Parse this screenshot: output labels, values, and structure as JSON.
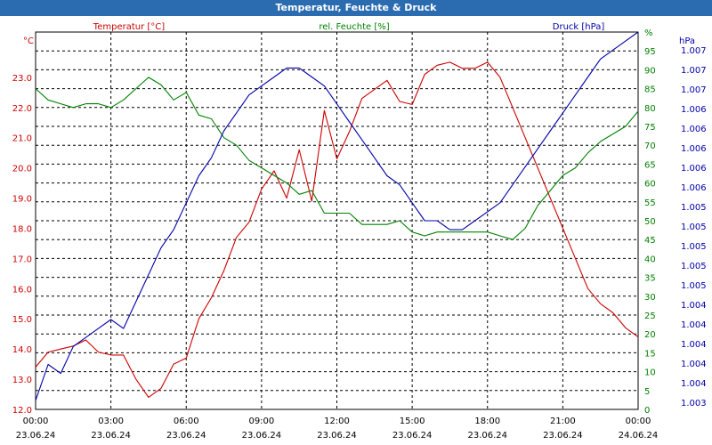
{
  "window": {
    "title": "Temperatur, Feuchte & Druck"
  },
  "chart_data": {
    "type": "line",
    "title": "Temperatur, Feuchte & Druck",
    "legend": {
      "placement": "top",
      "items": [
        "Temperatur [°C]",
        "rel. Feuchte [%]",
        "Druck [hPa]"
      ]
    },
    "grid": true,
    "x_ticks": [
      {
        "time": "00:00",
        "date": "23.06.24"
      },
      {
        "time": "03:00",
        "date": "23.06.24"
      },
      {
        "time": "06:00",
        "date": "23.06.24"
      },
      {
        "time": "09:00",
        "date": "23.06.24"
      },
      {
        "time": "12:00",
        "date": "23.06.24"
      },
      {
        "time": "15:00",
        "date": "23.06.24"
      },
      {
        "time": "18:00",
        "date": "23.06.24"
      },
      {
        "time": "21:00",
        "date": "23.06.24"
      },
      {
        "time": "00:00",
        "date": "24.06.24"
      }
    ],
    "x_range_hours": [
      0,
      24
    ],
    "axes": {
      "temperature": {
        "unit": "°C",
        "range": [
          12.0,
          24.5
        ],
        "ticks": [
          "12.0",
          "13.0",
          "14.0",
          "15.0",
          "16.0",
          "17.0",
          "18.0",
          "19.0",
          "20.0",
          "21.0",
          "22.0",
          "23.0"
        ],
        "color": "#cc0000"
      },
      "humidity": {
        "unit": "%",
        "range": [
          0,
          100
        ],
        "ticks": [
          "0",
          "5",
          "10",
          "15",
          "20",
          "25",
          "30",
          "35",
          "40",
          "45",
          "50",
          "55",
          "60",
          "65",
          "70",
          "75",
          "80",
          "85",
          "90",
          "95",
          "%"
        ],
        "color": "#008000"
      },
      "pressure": {
        "unit": "hPa",
        "range": [
          1003.0,
          1007.2
        ],
        "ticks": [
          "1.003",
          "1.004",
          "1.004",
          "1.004",
          "1.004",
          "1.004",
          "1.005",
          "1.005",
          "1.005",
          "1.005",
          "1.005",
          "1.006",
          "1.006",
          "1.006",
          "1.006",
          "1.006",
          "1.007",
          "1.007",
          "1.007"
        ],
        "color": "#0000aa"
      }
    },
    "series": [
      {
        "name": "Temperatur [°C]",
        "axis": "temperature",
        "color": "#cc0000",
        "x": [
          0,
          0.5,
          1,
          1.5,
          2,
          2.5,
          3,
          3.5,
          4,
          4.5,
          5,
          5.5,
          6,
          6.5,
          7,
          7.5,
          8,
          8.5,
          9,
          9.5,
          10,
          10.5,
          11,
          11.5,
          12,
          12.5,
          13,
          13.5,
          14,
          14.5,
          15,
          15.5,
          16,
          16.5,
          17,
          17.5,
          18,
          18.5,
          19,
          19.5,
          20,
          20.5,
          21,
          21.5,
          22,
          22.5,
          23,
          23.5,
          24
        ],
        "values": [
          13.4,
          13.9,
          14.0,
          14.1,
          14.3,
          13.9,
          13.8,
          13.8,
          13.0,
          12.4,
          12.7,
          13.5,
          13.7,
          15.0,
          15.7,
          16.6,
          17.7,
          18.2,
          19.3,
          19.9,
          19.0,
          20.6,
          18.9,
          21.9,
          20.3,
          21.2,
          22.3,
          22.6,
          22.9,
          22.2,
          22.1,
          23.1,
          23.4,
          23.5,
          23.3,
          23.3,
          23.5,
          23.0,
          22.0,
          21.0,
          20.0,
          19.0,
          18.0,
          17.0,
          16.0,
          15.5,
          15.2,
          14.7,
          14.4
        ]
      },
      {
        "name": "rel. Feuchte [%]",
        "axis": "humidity",
        "color": "#008000",
        "x": [
          0,
          0.5,
          1,
          1.5,
          2,
          2.5,
          3,
          3.5,
          4,
          4.5,
          5,
          5.5,
          6,
          6.5,
          7,
          7.5,
          8,
          8.5,
          9,
          9.5,
          10,
          10.5,
          11,
          11.5,
          12,
          12.5,
          13,
          13.5,
          14,
          14.5,
          15,
          15.5,
          16,
          16.5,
          17,
          17.5,
          18,
          18.5,
          19,
          19.5,
          20,
          20.5,
          21,
          21.5,
          22,
          22.5,
          23,
          23.5,
          24
        ],
        "values": [
          85,
          82,
          81,
          80,
          81,
          81,
          80,
          82,
          85,
          88,
          86,
          82,
          84,
          78,
          77,
          72,
          70,
          66,
          64,
          62,
          60,
          57,
          58,
          52,
          52,
          52,
          49,
          49,
          49,
          50,
          47,
          46,
          47,
          47,
          47,
          47,
          47,
          46,
          45,
          48,
          54,
          58,
          62,
          64,
          68,
          71,
          73,
          75,
          79
        ]
      },
      {
        "name": "Druck [hPa]",
        "axis": "pressure",
        "color": "#0000aa",
        "x": [
          0,
          0.5,
          1,
          1.5,
          2,
          2.5,
          3,
          3.5,
          4,
          4.5,
          5,
          5.5,
          6,
          6.5,
          7,
          7.5,
          8,
          8.5,
          9,
          9.5,
          10,
          10.5,
          11,
          11.5,
          12,
          12.5,
          13,
          13.5,
          14,
          14.5,
          15,
          15.5,
          16,
          16.5,
          17,
          17.5,
          18,
          18.5,
          19,
          19.5,
          20,
          20.5,
          21,
          21.5,
          22,
          22.5,
          23,
          23.5,
          24
        ],
        "values": [
          1003.1,
          1003.5,
          1003.4,
          1003.7,
          1003.8,
          1003.9,
          1004.0,
          1003.9,
          1004.2,
          1004.5,
          1004.8,
          1005.0,
          1005.3,
          1005.6,
          1005.8,
          1006.1,
          1006.3,
          1006.5,
          1006.6,
          1006.7,
          1006.8,
          1006.8,
          1006.7,
          1006.6,
          1006.4,
          1006.2,
          1006.0,
          1005.8,
          1005.6,
          1005.5,
          1005.3,
          1005.1,
          1005.1,
          1005.0,
          1005.0,
          1005.1,
          1005.2,
          1005.3,
          1005.5,
          1005.7,
          1005.9,
          1006.1,
          1006.3,
          1006.5,
          1006.7,
          1006.9,
          1007.0,
          1007.1,
          1007.2
        ]
      }
    ]
  }
}
